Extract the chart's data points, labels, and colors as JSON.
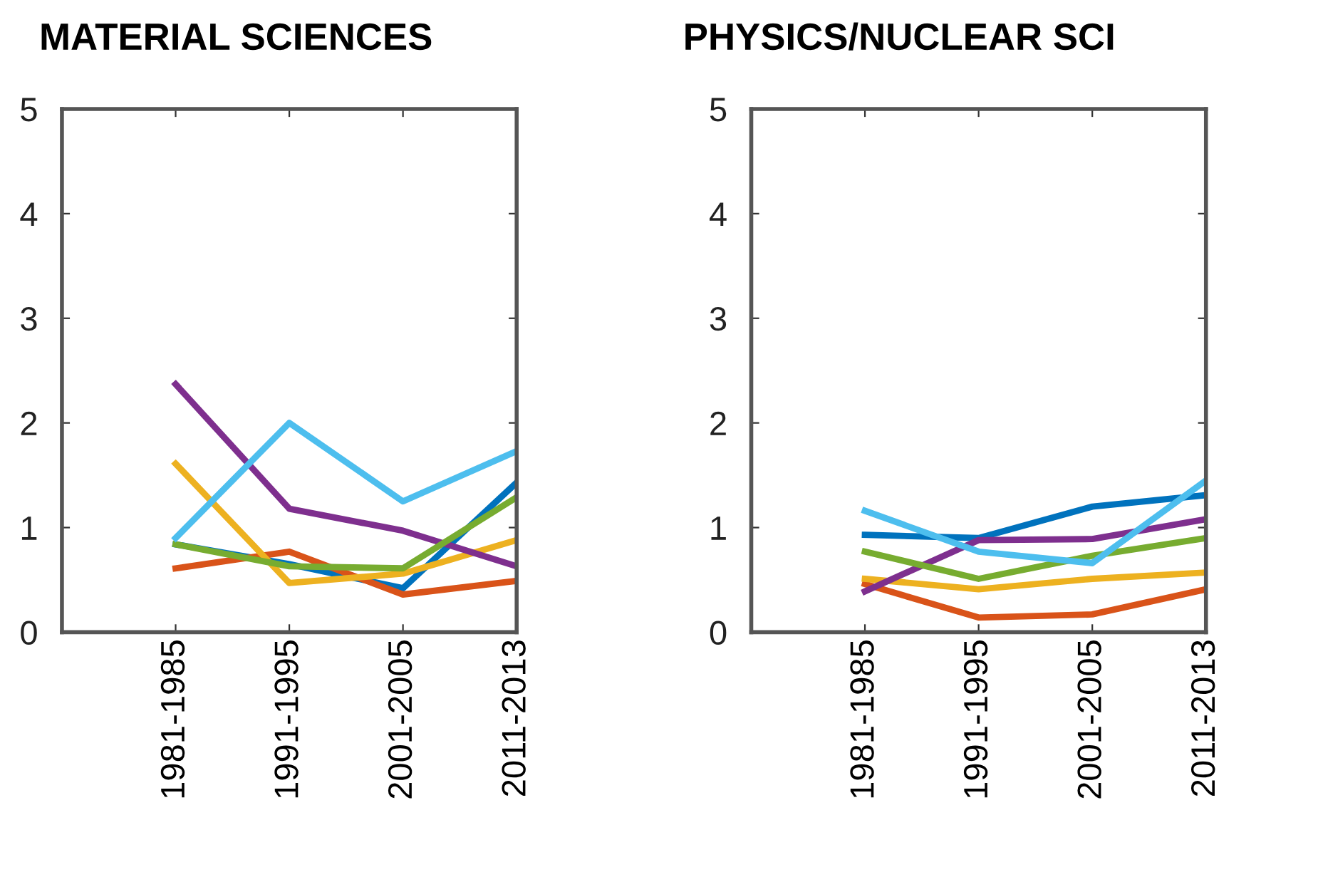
{
  "chart_data": [
    {
      "type": "line",
      "title": "MATERIAL SCIENCES",
      "categories": [
        "1981-1985",
        "1991-1995",
        "2001-2005",
        "2011-2013"
      ],
      "ylim": [
        0,
        5
      ],
      "yticks": [
        0,
        1,
        2,
        3,
        4,
        5
      ],
      "grid": false,
      "marker": "none",
      "line_style": "solid",
      "series": [
        {
          "color": "#0072bd",
          "values": [
            0.84,
            0.65,
            0.42,
            1.43
          ]
        },
        {
          "color": "#d95319",
          "values": [
            0.61,
            0.77,
            0.36,
            0.49
          ]
        },
        {
          "color": "#edb120",
          "values": [
            1.61,
            0.47,
            0.56,
            0.88
          ]
        },
        {
          "color": "#7e2f8e",
          "values": [
            2.37,
            1.18,
            0.97,
            0.63
          ]
        },
        {
          "color": "#77ac30",
          "values": [
            0.84,
            0.63,
            0.61,
            1.29
          ]
        },
        {
          "color": "#4dbeee",
          "values": [
            0.9,
            2.0,
            1.25,
            1.73
          ]
        }
      ]
    },
    {
      "type": "line",
      "title": "PHYSICS/NUCLEAR SCI",
      "categories": [
        "1981-1985",
        "1991-1995",
        "2001-2005",
        "2011-2013"
      ],
      "ylim": [
        0,
        5
      ],
      "yticks": [
        0,
        1,
        2,
        3,
        4,
        5
      ],
      "grid": false,
      "marker": "none",
      "line_style": "solid",
      "series": [
        {
          "color": "#0072bd",
          "values": [
            0.93,
            0.9,
            1.2,
            1.31
          ]
        },
        {
          "color": "#d95319",
          "values": [
            0.46,
            0.14,
            0.17,
            0.41
          ]
        },
        {
          "color": "#edb120",
          "values": [
            0.51,
            0.41,
            0.51,
            0.57
          ]
        },
        {
          "color": "#7e2f8e",
          "values": [
            0.39,
            0.88,
            0.89,
            1.08
          ]
        },
        {
          "color": "#77ac30",
          "values": [
            0.77,
            0.51,
            0.73,
            0.9
          ]
        },
        {
          "color": "#4dbeee",
          "values": [
            1.16,
            0.77,
            0.66,
            1.45
          ]
        }
      ]
    }
  ]
}
